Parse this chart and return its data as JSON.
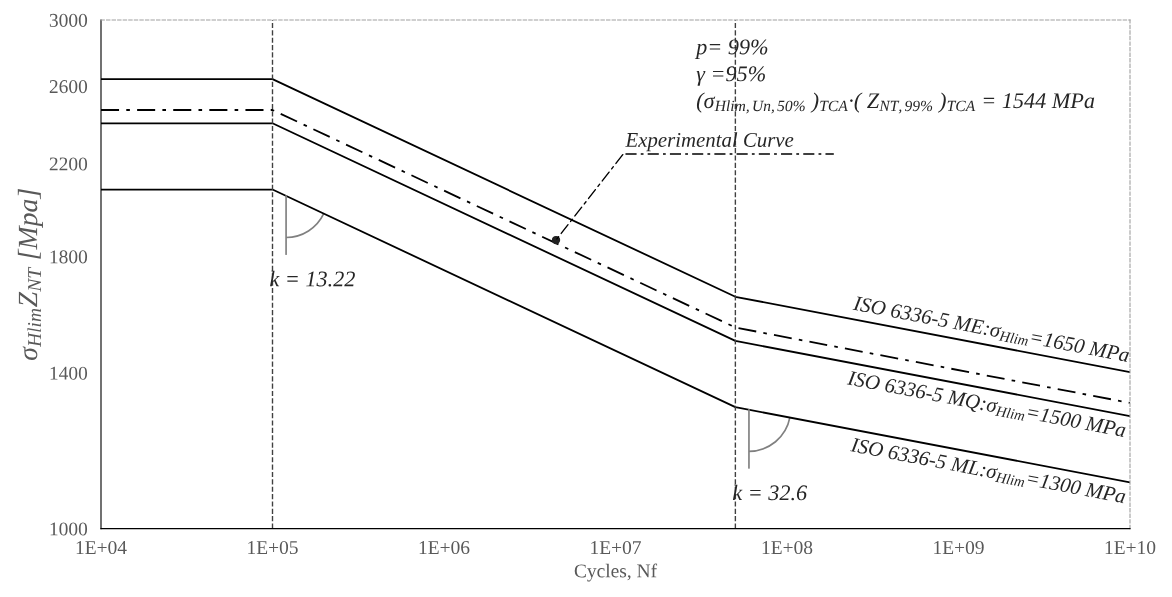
{
  "chart_data": {
    "type": "line",
    "xlabel": "Cycles, Nf",
    "ylabel": "σ$_{Hlim}$Z$_{NT}$ [Mpa]",
    "x": [
      10000,
      100000,
      50000000,
      10000000000
    ],
    "series": [
      {
        "name": "ISO 6336-5 ME:σ$_{Hlim}$=1650 MPa",
        "color": "#000000",
        "line_style": "solid",
        "values": [
          2640,
          2640,
          1650,
          1402
        ]
      },
      {
        "color": "#000000",
        "line_style": "dashdot",
        "values": [
          2470,
          2470,
          1544,
          1312
        ]
      },
      {
        "name": "ISO 6336-5 MQ:σ$_{Hlim}$=1500 MPa",
        "color": "#000000",
        "line_style": "solid",
        "values": [
          2400,
          2400,
          1500,
          1275
        ]
      },
      {
        "name": "ISO 6336-5 ML:σ$_{Hlim}$=1300 MPa",
        "color": "#000000",
        "line_style": "solid",
        "values": [
          2080,
          2080,
          1300,
          1105
        ]
      }
    ],
    "log": "xy",
    "xlim": [
      10000,
      10000000000
    ],
    "xticks": [
      {
        "value": 10000,
        "label": "1E+04"
      },
      {
        "value": 100000,
        "label": "1E+05"
      },
      {
        "value": 1000000,
        "label": "1E+06"
      },
      {
        "value": 10000000,
        "label": "1E+07"
      },
      {
        "value": 100000000,
        "label": "1E+08"
      },
      {
        "value": 1000000000,
        "label": "1E+09"
      },
      {
        "value": 10000000000,
        "label": "1E+10"
      }
    ],
    "ylim": [
      1000,
      3000
    ],
    "yticks": [
      1000,
      1400,
      1800,
      2200,
      2600,
      3000
    ],
    "ref_lines": [
      {
        "axis": "x",
        "value": 100000,
        "color": "#404040",
        "line_style": "dashed"
      },
      {
        "axis": "x",
        "value": 50000000,
        "color": "#404040",
        "line_style": "dashed"
      }
    ],
    "annotations": [
      "p= 99%",
      "γ =95%",
      "(σ$_{Hlim,Un,50%}$ )$_{TCA}$·( Z$_{NT,99%}$ )$_{TCA}$ = 1544 MPa",
      {
        "text": "Experimental Curve",
        "x": 4500000,
        "y": 1865
      },
      {
        "text": "k = 13.22",
        "x": 120000,
        "y": 2052
      },
      {
        "text": "k = 32.6",
        "x": 60000000,
        "y": 1293
      }
    ],
    "grid": false,
    "legend": false
  }
}
